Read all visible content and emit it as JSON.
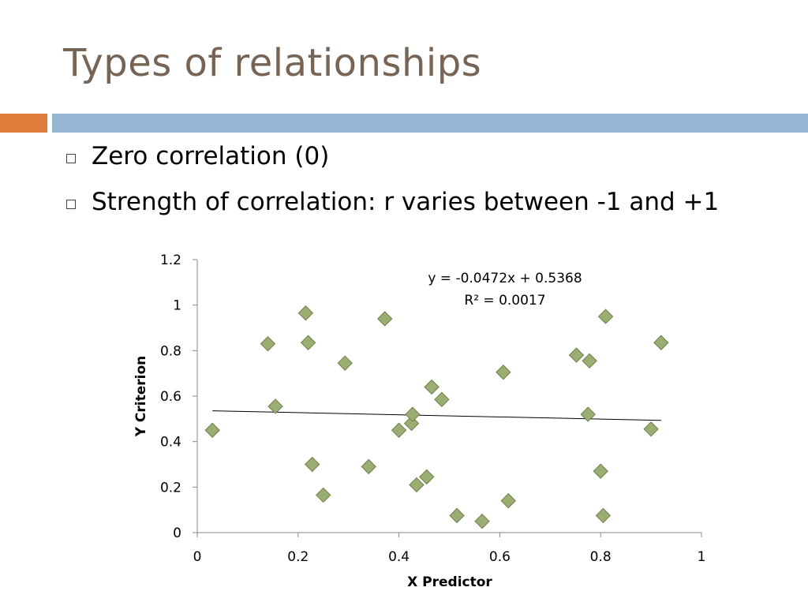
{
  "slide": {
    "title": "Types of relationships",
    "bullets": [
      "Zero correlation (0)",
      "Strength of correlation: r varies between -1 and +1"
    ],
    "colors": {
      "title": "#776455",
      "accent_orange": "#e07c3c",
      "accent_blue": "#94b6d2",
      "marker_fill": "#9aae72",
      "marker_stroke": "#6e7f4c"
    }
  },
  "chart_data": {
    "type": "scatter",
    "title": "",
    "xlabel": "X Predictor",
    "ylabel": "Y Criterion",
    "xlim": [
      0,
      1
    ],
    "ylim": [
      0,
      1.2
    ],
    "xticks": [
      "0",
      "0.2",
      "0.4",
      "0.6",
      "0.8",
      "1"
    ],
    "yticks": [
      "0",
      "0.2",
      "0.4",
      "0.6",
      "0.8",
      "1",
      "1.2"
    ],
    "grid": false,
    "legend": "none",
    "trendline": {
      "slope": -0.0472,
      "intercept": 0.5368,
      "x_range": [
        0.03,
        0.92
      ],
      "equation_label": "y = -0.0472x + 0.5368",
      "r2_label": "R² = 0.0017"
    },
    "points": [
      {
        "x": 0.03,
        "y": 0.45
      },
      {
        "x": 0.14,
        "y": 0.83
      },
      {
        "x": 0.155,
        "y": 0.555
      },
      {
        "x": 0.215,
        "y": 0.965
      },
      {
        "x": 0.22,
        "y": 0.835
      },
      {
        "x": 0.228,
        "y": 0.3
      },
      {
        "x": 0.25,
        "y": 0.165
      },
      {
        "x": 0.293,
        "y": 0.745
      },
      {
        "x": 0.34,
        "y": 0.29
      },
      {
        "x": 0.372,
        "y": 0.94
      },
      {
        "x": 0.4,
        "y": 0.45
      },
      {
        "x": 0.425,
        "y": 0.48
      },
      {
        "x": 0.427,
        "y": 0.52
      },
      {
        "x": 0.435,
        "y": 0.21
      },
      {
        "x": 0.455,
        "y": 0.245
      },
      {
        "x": 0.465,
        "y": 0.64
      },
      {
        "x": 0.485,
        "y": 0.585
      },
      {
        "x": 0.515,
        "y": 0.075
      },
      {
        "x": 0.565,
        "y": 0.05
      },
      {
        "x": 0.607,
        "y": 0.705
      },
      {
        "x": 0.617,
        "y": 0.14
      },
      {
        "x": 0.752,
        "y": 0.78
      },
      {
        "x": 0.775,
        "y": 0.52
      },
      {
        "x": 0.778,
        "y": 0.755
      },
      {
        "x": 0.8,
        "y": 0.27
      },
      {
        "x": 0.805,
        "y": 0.075
      },
      {
        "x": 0.81,
        "y": 0.95
      },
      {
        "x": 0.9,
        "y": 0.455
      },
      {
        "x": 0.92,
        "y": 0.835
      }
    ]
  }
}
